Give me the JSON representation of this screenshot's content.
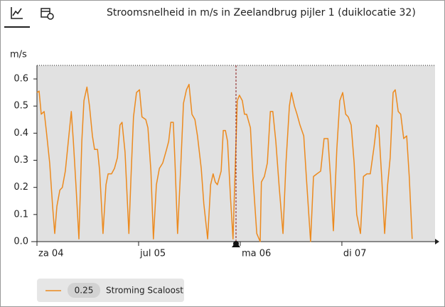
{
  "chart_data": {
    "type": "line",
    "title": "Stroomsnelheid in m/s in Zeelandbrug pijler 1 (duiklocatie 32)",
    "y_label": "m/s",
    "x": [
      0.0,
      0.5,
      1.0,
      1.7,
      2.2,
      3.0,
      3.7,
      4.2,
      4.7,
      5.4,
      6.0,
      6.7,
      7.4,
      8.1,
      8.6,
      9.2,
      9.9,
      10.6,
      11.1,
      11.8,
      12.4,
      13.1,
      13.6,
      14.3,
      14.8,
      15.6,
      16.3,
      16.8,
      17.6,
      18.3,
      19.0,
      19.6,
      20.1,
      20.8,
      21.7,
      22.2,
      22.8,
      23.5,
      24.2,
      24.8,
      25.7,
      26.2,
      26.9,
      27.5,
      28.2,
      28.9,
      29.7,
      30.6,
      31.1,
      31.6,
      32.2,
      32.6,
      33.2,
      33.9,
      34.6,
      35.3,
      35.9,
      36.6,
      37.3,
      37.9,
      38.8,
      39.4,
      40.3,
      41.0,
      41.6,
      42.1,
      42.6,
      43.5,
      44.0,
      44.5,
      45.0,
      45.7,
      46.3,
      47.3,
      47.8,
      48.5,
      49.0,
      49.5,
      50.4,
      51.0,
      51.9,
      52.7,
      53.0,
      53.7,
      54.4,
      55.1,
      55.7,
      56.4,
      57.2,
      58.1,
      58.8,
      59.6,
      60.1,
      60.8,
      61.4,
      62.1,
      63.0,
      63.6,
      64.6,
      65.3,
      66.1,
      67.0,
      67.8,
      68.7,
      69.3,
      70.0,
      70.8,
      71.5,
      72.2,
      72.9,
      73.5,
      74.2,
      74.9,
      75.5,
      76.4,
      77.1,
      77.9,
      78.7,
      79.6,
      80.2,
      80.7,
      81.4,
      82.1,
      82.8,
      83.4,
      84.1,
      84.6,
      85.3,
      85.9,
      86.6,
      87.3,
      87.9,
      88.6
    ],
    "series": [
      {
        "name": "Stroming Scaloost",
        "color": "#ec8a1e",
        "current_value": 0.25,
        "values": [
          0.55,
          0.555,
          0.47,
          0.48,
          0.41,
          0.29,
          0.13,
          0.03,
          0.13,
          0.19,
          0.2,
          0.26,
          0.37,
          0.48,
          0.37,
          0.21,
          0.01,
          0.37,
          0.52,
          0.57,
          0.5,
          0.39,
          0.34,
          0.34,
          0.26,
          0.03,
          0.21,
          0.25,
          0.25,
          0.27,
          0.31,
          0.43,
          0.44,
          0.33,
          0.03,
          0.24,
          0.46,
          0.55,
          0.56,
          0.46,
          0.45,
          0.42,
          0.26,
          0.01,
          0.21,
          0.27,
          0.29,
          0.34,
          0.37,
          0.44,
          0.44,
          0.29,
          0.03,
          0.26,
          0.51,
          0.56,
          0.58,
          0.47,
          0.45,
          0.39,
          0.27,
          0.14,
          0.01,
          0.21,
          0.25,
          0.22,
          0.21,
          0.26,
          0.41,
          0.41,
          0.37,
          0.16,
          0.01,
          0.52,
          0.54,
          0.52,
          0.47,
          0.47,
          0.42,
          0.24,
          0.03,
          0,
          0.22,
          0.24,
          0.29,
          0.48,
          0.48,
          0.37,
          0.2,
          0.03,
          0.29,
          0.5,
          0.55,
          0.5,
          0.47,
          0.43,
          0.39,
          0.24,
          0,
          0.24,
          0.25,
          0.26,
          0.38,
          0.38,
          0.24,
          0.04,
          0.34,
          0.52,
          0.55,
          0.47,
          0.46,
          0.43,
          0.29,
          0.1,
          0.03,
          0.24,
          0.25,
          0.25,
          0.35,
          0.43,
          0.42,
          0.24,
          0.03,
          0.21,
          0.31,
          0.55,
          0.56,
          0.48,
          0.47,
          0.38,
          0.39,
          0.24,
          0.01
        ]
      }
    ],
    "xlim": [
      0,
      94
    ],
    "xticks": [
      {
        "value": 0,
        "label": "za 04"
      },
      {
        "value": 24,
        "label": "jul 05"
      },
      {
        "value": 48,
        "label": "ma 06"
      },
      {
        "value": 72,
        "label": "di 07"
      }
    ],
    "ylim": [
      0,
      0.65
    ],
    "yticks": [
      {
        "value": 0,
        "label": "0.0"
      },
      0.1,
      0.2,
      0.3,
      0.4,
      0.5,
      0.6
    ],
    "now": 47,
    "now_color": "#8b1a1a"
  }
}
